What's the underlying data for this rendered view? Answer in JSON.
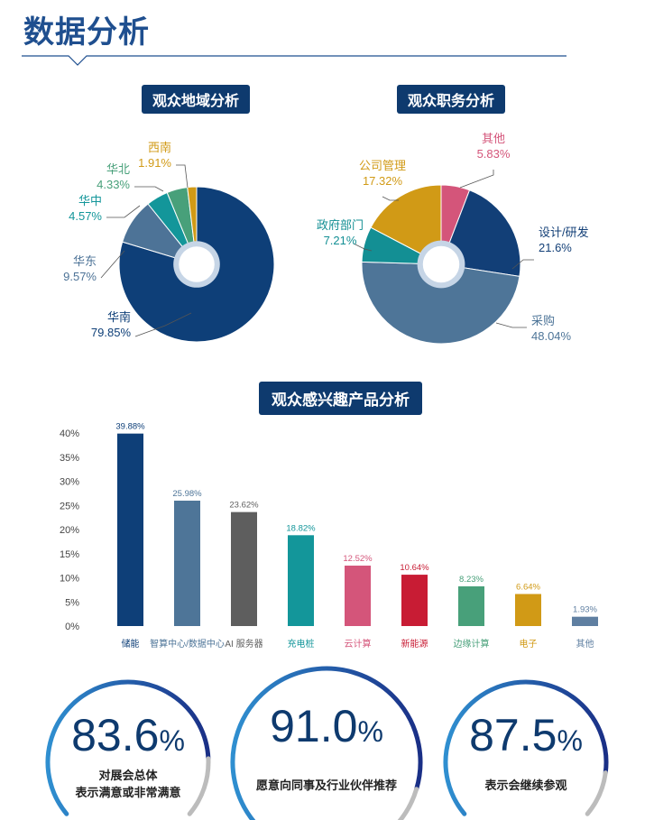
{
  "page": {
    "title": "数据分析"
  },
  "sections": {
    "region_title": "观众地域分析",
    "job_title": "观众职务分析",
    "product_title": "观众感兴趣产品分析"
  },
  "chart_data": [
    {
      "type": "pie",
      "title": "观众地域分析",
      "slices": [
        {
          "name": "华南",
          "value": 79.85,
          "label": "79.85%",
          "color": "#0e3f78"
        },
        {
          "name": "华东",
          "value": 9.57,
          "label": "9.57%",
          "color": "#4d7397"
        },
        {
          "name": "华中",
          "value": 4.57,
          "label": "4.57%",
          "color": "#13969a"
        },
        {
          "name": "华北",
          "value": 4.33,
          "label": "4.33%",
          "color": "#48a07a"
        },
        {
          "name": "西南",
          "value": 1.91,
          "label": "1.91%",
          "color": "#d19a16"
        }
      ]
    },
    {
      "type": "pie",
      "title": "观众职务分析",
      "slices": [
        {
          "name": "其他",
          "value": 5.83,
          "label": "5.83%",
          "color": "#d4557a"
        },
        {
          "name": "设计/研发",
          "value": 21.6,
          "label": "21.6%",
          "color": "#123f77"
        },
        {
          "name": "采购",
          "value": 48.04,
          "label": "48.04%",
          "color": "#4e7598"
        },
        {
          "name": "政府部门",
          "value": 7.21,
          "label": "7.21%",
          "color": "#138f94"
        },
        {
          "name": "公司管理",
          "value": 17.32,
          "label": "17.32%",
          "color": "#d19a16"
        }
      ]
    },
    {
      "type": "bar",
      "title": "观众感兴趣产品分析",
      "categories": [
        "储能",
        "智算中心/数据中心",
        "AI 服务器",
        "充电桩",
        "云计算",
        "新能源",
        "边缘计算",
        "电子",
        "其他"
      ],
      "values": [
        39.88,
        25.98,
        23.62,
        18.82,
        12.52,
        10.64,
        8.23,
        6.64,
        1.93
      ],
      "value_labels": [
        "39.88%",
        "25.98%",
        "23.62%",
        "18.82%",
        "12.52%",
        "10.64%",
        "8.23%",
        "6.64%",
        "1.93%"
      ],
      "colors": [
        "#0e3f78",
        "#4e7598",
        "#5e5e5e",
        "#13969a",
        "#d4557a",
        "#c81c34",
        "#48a07a",
        "#d19a16",
        "#5f7fa1"
      ],
      "yticks": [
        "0%",
        "5%",
        "10%",
        "15%",
        "20%",
        "25%",
        "30%",
        "35%",
        "40%"
      ],
      "ylim": [
        0,
        40
      ],
      "grid": false
    }
  ],
  "stats": [
    {
      "value": "83.6",
      "unit": "%",
      "label_line1": "对展会总体",
      "label_line2": "表示满意或非常满意",
      "progress": 0.836
    },
    {
      "value": "91.0",
      "unit": "%",
      "label_line1": "愿意向同事及行业伙伴推荐",
      "progress": 0.91
    },
    {
      "value": "87.5",
      "unit": "%",
      "label_line1": "表示会继续参观",
      "progress": 0.875
    }
  ],
  "colors": {
    "accent": "#0e3a6e",
    "title": "#1f4f8f",
    "arc_start": "#2f8fd0",
    "arc_end": "#1a2f86",
    "arc_rest": "#bcbcbc"
  }
}
